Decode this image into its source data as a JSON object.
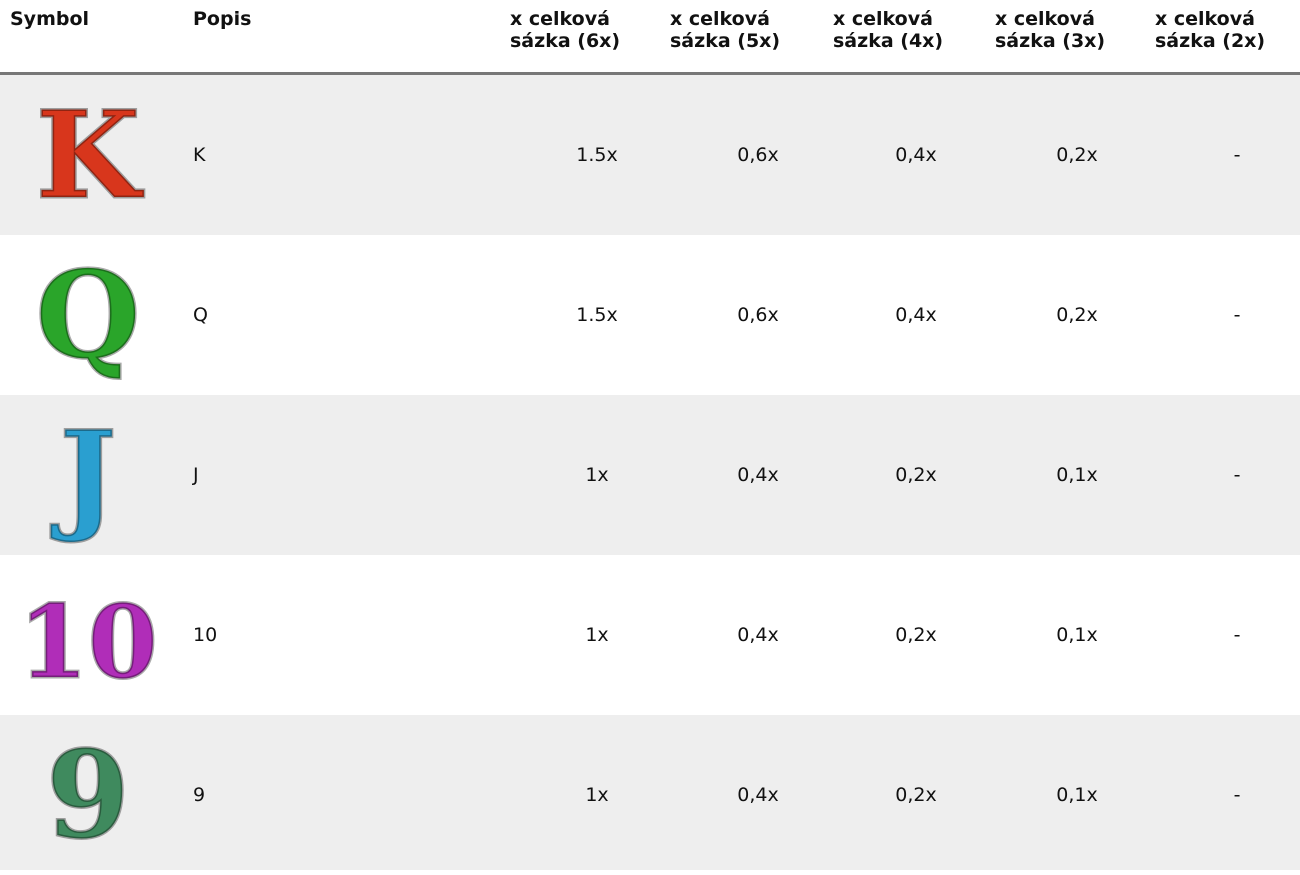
{
  "table": {
    "header": [
      "Symbol",
      "Popis",
      "x celková sázka (6x)",
      "x celková sázka (5x)",
      "x celková sázka (4x)",
      "x celková sázka (3x)",
      "x celková sázka (2x)"
    ],
    "rows": [
      {
        "description": "K",
        "color": "#d8361c",
        "payouts": [
          "1.5x",
          "0,6x",
          "0,4x",
          "0,2x",
          "-"
        ]
      },
      {
        "description": "Q",
        "color": "#2aa52a",
        "payouts": [
          "1.5x",
          "0,6x",
          "0,4x",
          "0,2x",
          "-"
        ]
      },
      {
        "description": "J",
        "color": "#2a9fd0",
        "payouts": [
          "1x",
          "0,4x",
          "0,2x",
          "0,1x",
          "-"
        ]
      },
      {
        "description": "10",
        "color": "#b02db8",
        "payouts": [
          "1x",
          "0,4x",
          "0,2x",
          "0,1x",
          "-"
        ]
      },
      {
        "description": "9",
        "color": "#3f8a5e",
        "payouts": [
          "1x",
          "0,4x",
          "0,2x",
          "0,1x",
          "-"
        ]
      }
    ]
  }
}
